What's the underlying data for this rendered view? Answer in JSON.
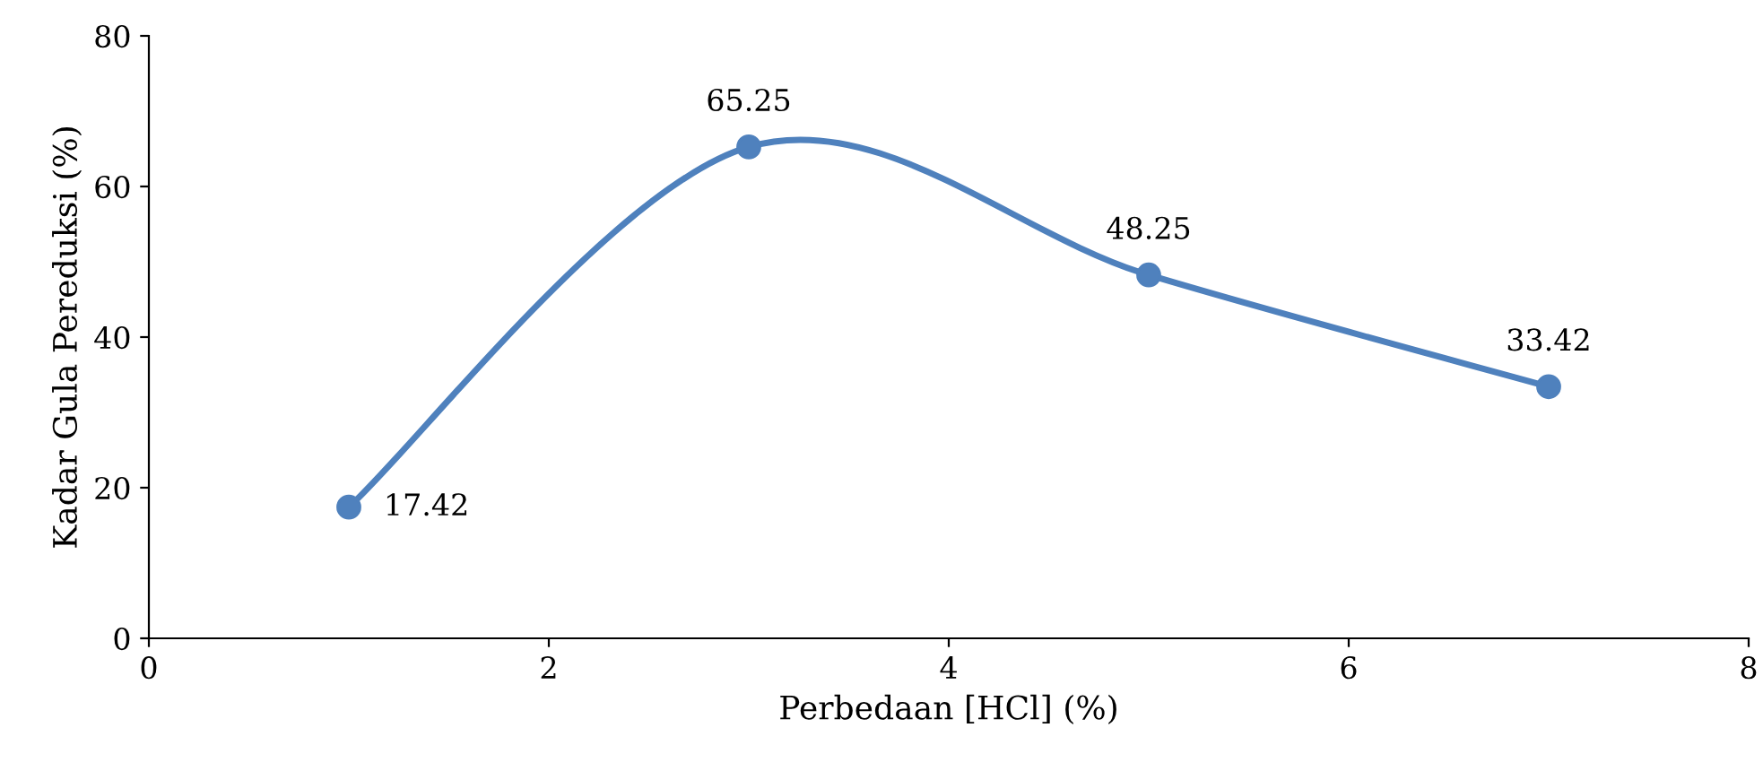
{
  "chart_data": {
    "type": "line",
    "xlabel": "Perbedaan [HCl] (%)",
    "ylabel": "Kadar Gula Pereduksi (%)",
    "x": [
      1,
      3,
      5,
      7
    ],
    "series": [
      {
        "color": "#4f81bd",
        "values": [
          17.42,
          65.25,
          48.25,
          33.42
        ]
      }
    ],
    "xlim": [
      0,
      8
    ],
    "xticks": [
      0,
      2,
      4,
      6,
      8
    ],
    "ylim": [
      0,
      80
    ],
    "yticks": [
      0,
      20,
      40,
      60,
      80
    ],
    "data_labels": true,
    "marker": "circle",
    "line_style": "solid",
    "grid": false,
    "legend": false
  }
}
